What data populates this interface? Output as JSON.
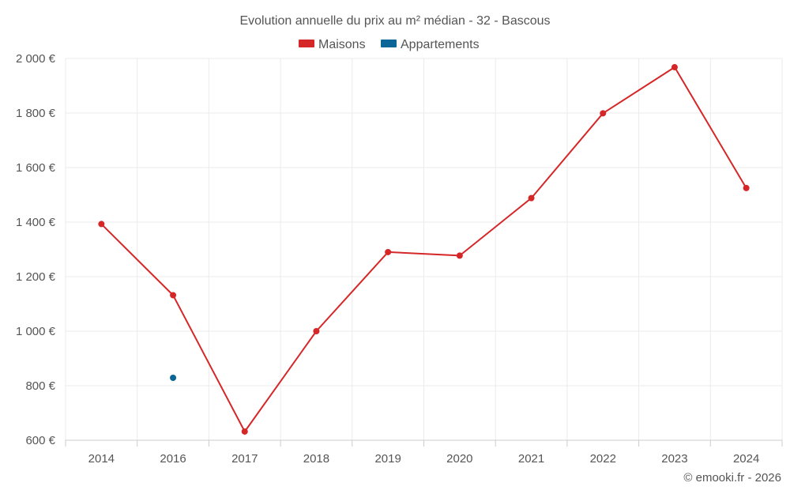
{
  "chart_data": {
    "type": "line",
    "title": "Evolution annuelle du prix au m² médian - 32 - Bascous",
    "categories": [
      "2014",
      "2016",
      "2017",
      "2018",
      "2019",
      "2020",
      "2021",
      "2022",
      "2023",
      "2024"
    ],
    "y_ticks": [
      "600 €",
      "800 €",
      "1 000 €",
      "1 200 €",
      "1 400 €",
      "1 600 €",
      "1 800 €",
      "2 000 €"
    ],
    "y_tick_values": [
      600,
      800,
      1000,
      1200,
      1400,
      1600,
      1800,
      2000
    ],
    "ylim": [
      600,
      2000
    ],
    "grid": true,
    "legend_position": "top-center",
    "series": [
      {
        "name": "Maisons",
        "color": "#d62728",
        "values": [
          1393,
          1132,
          632,
          1000,
          1290,
          1277,
          1488,
          1799,
          1968,
          1525
        ]
      },
      {
        "name": "Appartements",
        "color": "#0b6596",
        "values": [
          null,
          829,
          null,
          null,
          null,
          null,
          null,
          null,
          null,
          null
        ]
      }
    ]
  },
  "credit": "© emooki.fr - 2026"
}
